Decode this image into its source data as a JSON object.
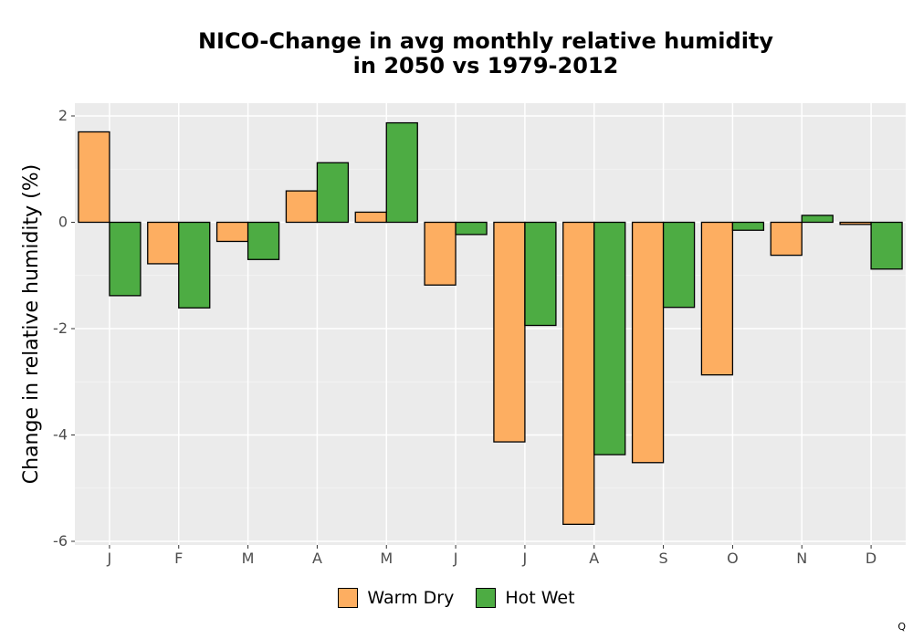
{
  "chart_data": {
    "type": "bar",
    "title_line1": "NICO-Change in avg monthly relative humidity",
    "title_line2": "in 2050 vs 1979-2012",
    "xlabel": "",
    "ylabel": "Change in relative humidity (%)",
    "categories": [
      "J",
      "F",
      "M",
      "A",
      "M",
      "J",
      "J",
      "A",
      "S",
      "O",
      "N",
      "D"
    ],
    "ylim": [
      -6,
      2.2
    ],
    "yticks": [
      2,
      0,
      -2,
      -4,
      -6
    ],
    "ytick_labels": [
      "2",
      "0",
      "-2",
      "-4",
      "-6"
    ],
    "grid": true,
    "legend_position": "bottom",
    "series": [
      {
        "name": "Warm Dry",
        "color": "#FDAE61",
        "values": [
          1.7,
          -0.78,
          -0.36,
          0.59,
          0.19,
          -1.18,
          -4.13,
          -5.68,
          -4.52,
          -2.87,
          -0.62,
          -0.04
        ]
      },
      {
        "name": "Hot Wet",
        "color": "#4DAC43",
        "values": [
          -1.38,
          -1.61,
          -0.7,
          1.12,
          1.87,
          -0.23,
          -1.94,
          -4.37,
          -1.6,
          -0.15,
          0.13,
          -0.88
        ]
      }
    ]
  },
  "footnote": "Q"
}
